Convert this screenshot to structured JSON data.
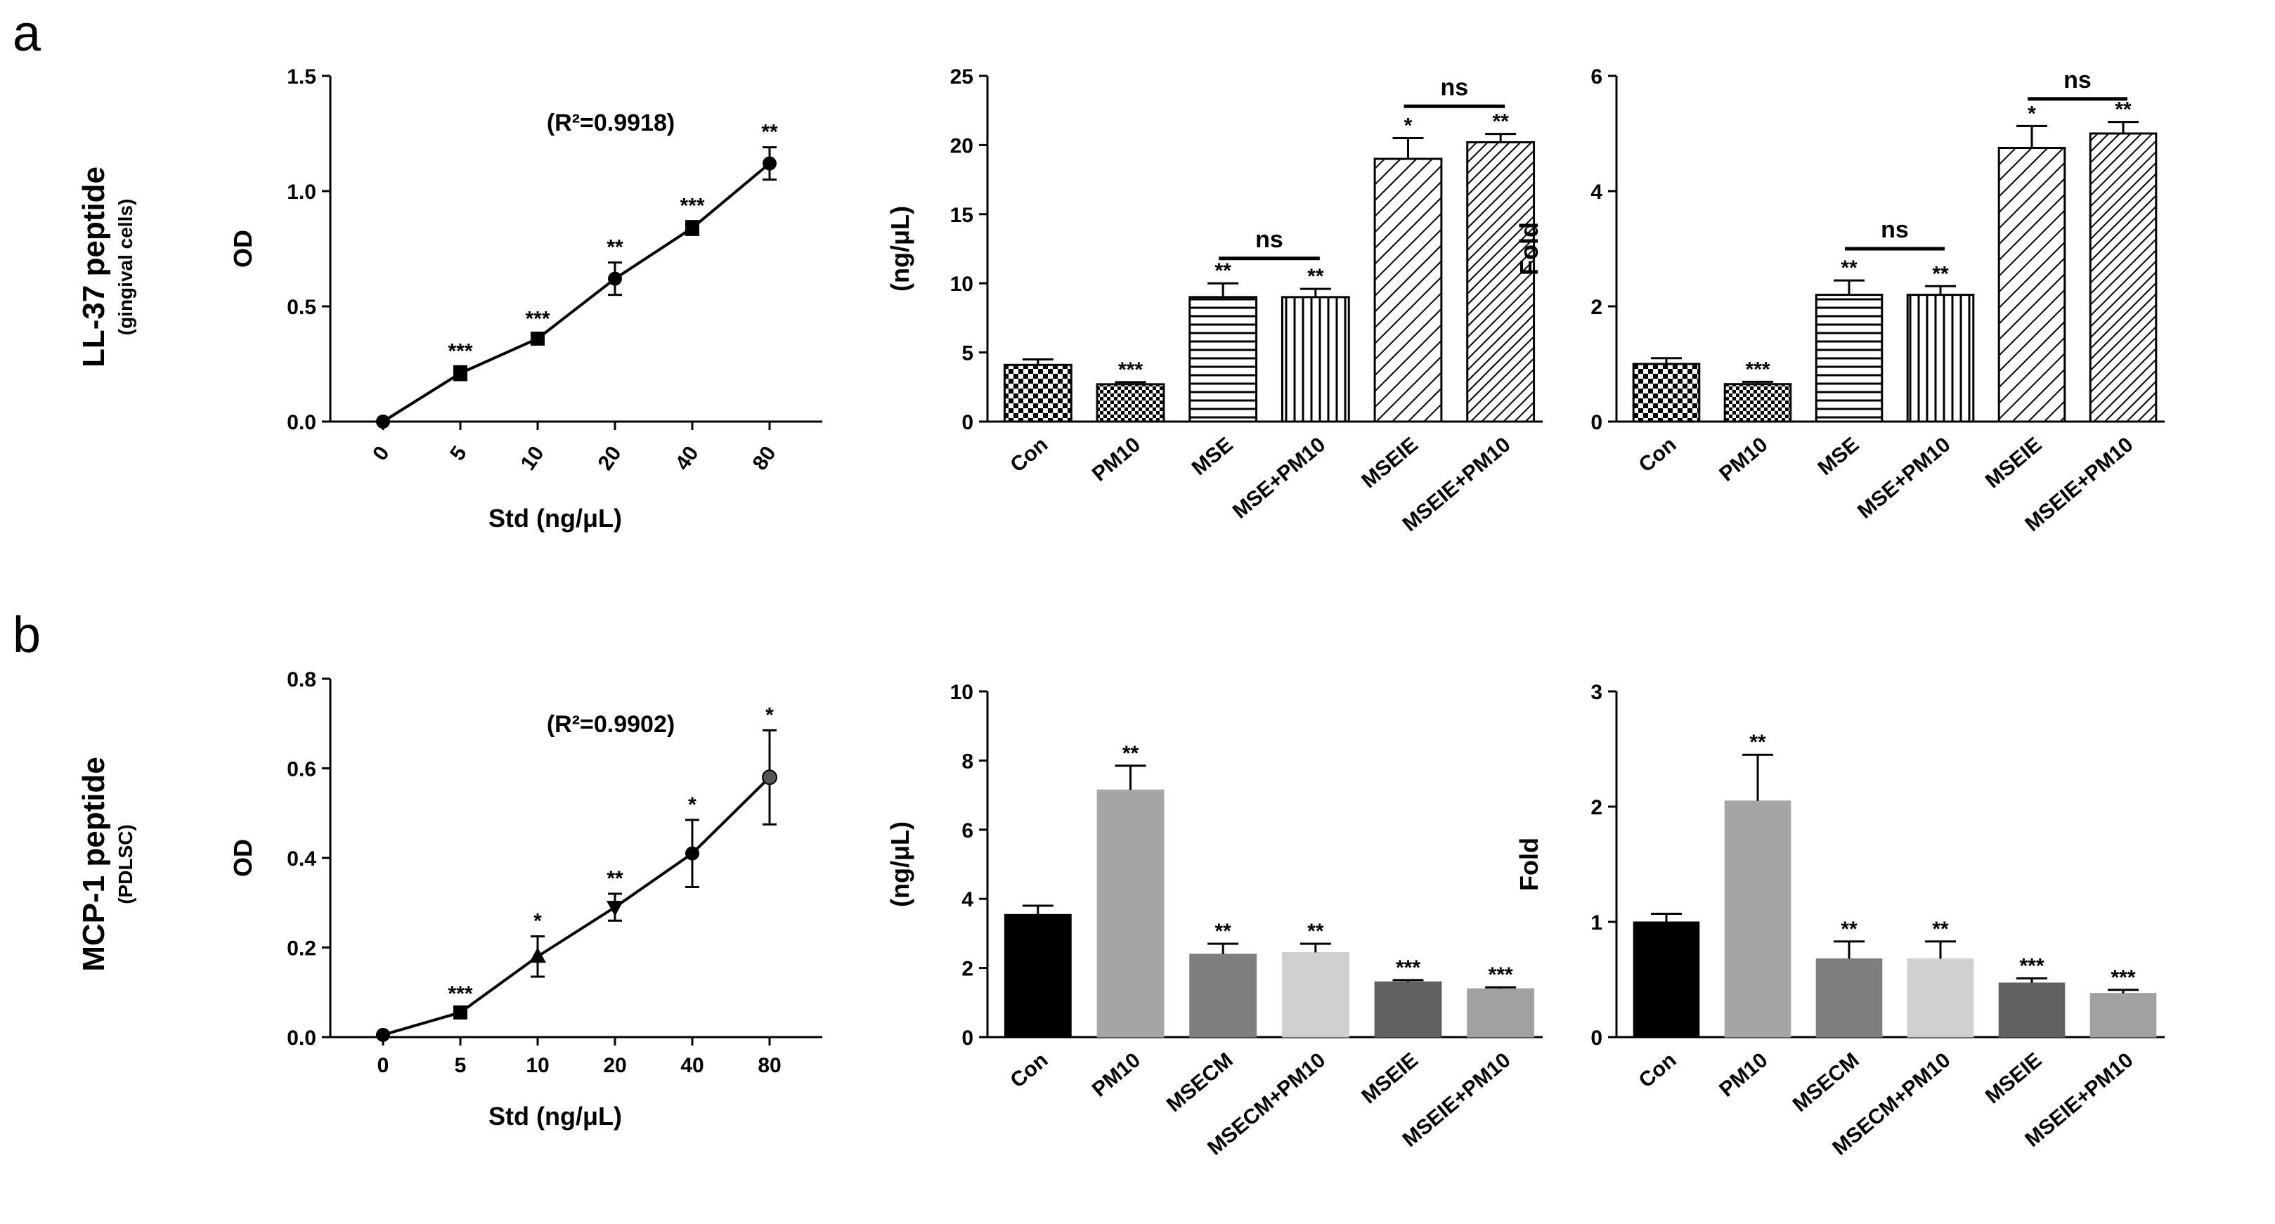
{
  "panels": {
    "a": "a",
    "b": "b"
  },
  "rows": {
    "a": {
      "title": "LL-37 peptide",
      "subtitle": "(gingival cells)"
    },
    "b": {
      "title": "MCP-1 peptide",
      "subtitle": "(PDLSC)"
    }
  },
  "chart_data": [
    {
      "id": "a1",
      "type": "line",
      "title": "",
      "xlabel": "Std (ng/μL)",
      "ylabel": "OD",
      "categories": [
        "0",
        "5",
        "10",
        "20",
        "40",
        "80"
      ],
      "values": [
        0.0,
        0.21,
        0.36,
        0.62,
        0.84,
        1.12
      ],
      "errors": [
        0.0,
        0.03,
        0.02,
        0.07,
        0.03,
        0.07
      ],
      "markers": [
        "circle",
        "square",
        "square",
        "circle",
        "square",
        "circle"
      ],
      "stars": [
        "",
        "***",
        "***",
        "**",
        "***",
        "**"
      ],
      "ylim": [
        0,
        1.5
      ],
      "yticks": [
        "0.0",
        "0.5",
        "1.0",
        "1.5"
      ],
      "yticks_values": [
        0,
        0.5,
        1.0,
        1.5
      ],
      "annotation": "(R²=0.9918)"
    },
    {
      "id": "a2",
      "type": "bar",
      "xlabel": "",
      "ylabel": "(ng/μL)",
      "categories": [
        "Con",
        "PM10",
        "MSE",
        "MSE+PM10",
        "MSEIE",
        "MSEIE+PM10"
      ],
      "values": [
        4.1,
        2.7,
        9.0,
        9.0,
        19.0,
        20.2
      ],
      "errors": [
        0.4,
        0.15,
        1.0,
        0.6,
        1.5,
        0.6
      ],
      "patterns": [
        "checker",
        "checker-fine",
        "hlines",
        "vlines",
        "diag",
        "diag-dense"
      ],
      "stars": [
        "",
        "***",
        "**",
        "**",
        "*",
        "**"
      ],
      "ylim": [
        0,
        25
      ],
      "yticks": [
        "0",
        "5",
        "10",
        "15",
        "20",
        "25"
      ],
      "yticks_values": [
        0,
        5,
        10,
        15,
        20,
        25
      ],
      "brackets": [
        {
          "from": 2,
          "to": 3,
          "label": "ns",
          "y": 11.8
        },
        {
          "from": 4,
          "to": 5,
          "label": "ns",
          "y": 22.8
        }
      ]
    },
    {
      "id": "a3",
      "type": "bar",
      "xlabel": "",
      "ylabel": "Fold",
      "categories": [
        "Con",
        "PM10",
        "MSE",
        "MSE+PM10",
        "MSEIE",
        "MSEIE+PM10"
      ],
      "values": [
        1.0,
        0.65,
        2.2,
        2.2,
        4.75,
        5.0
      ],
      "errors": [
        0.1,
        0.04,
        0.25,
        0.15,
        0.38,
        0.2
      ],
      "patterns": [
        "checker",
        "checker-fine",
        "hlines",
        "vlines",
        "diag",
        "diag-dense"
      ],
      "stars": [
        "",
        "***",
        "**",
        "**",
        "*",
        "**"
      ],
      "ylim": [
        0,
        6
      ],
      "yticks": [
        "0",
        "2",
        "4",
        "6"
      ],
      "yticks_values": [
        0,
        2,
        4,
        6
      ],
      "brackets": [
        {
          "from": 2,
          "to": 3,
          "label": "ns",
          "y": 3.0
        },
        {
          "from": 4,
          "to": 5,
          "label": "ns",
          "y": 5.6
        }
      ]
    },
    {
      "id": "b1",
      "type": "line",
      "title": "",
      "xlabel": "Std (ng/μL)",
      "ylabel": "OD",
      "categories": [
        "0",
        "5",
        "10",
        "20",
        "40",
        "80"
      ],
      "values": [
        0.005,
        0.055,
        0.18,
        0.29,
        0.41,
        0.58
      ],
      "errors": [
        0.0,
        0.008,
        0.045,
        0.03,
        0.075,
        0.105
      ],
      "markers": [
        "circle",
        "square",
        "triangle",
        "triangle-down",
        "circle",
        "circle-gray"
      ],
      "stars": [
        "",
        "***",
        "*",
        "**",
        "*",
        "*"
      ],
      "ylim": [
        0,
        0.8
      ],
      "yticks": [
        "0.0",
        "0.2",
        "0.4",
        "0.6",
        "0.8"
      ],
      "yticks_values": [
        0,
        0.2,
        0.4,
        0.6,
        0.8
      ],
      "annotation": "(R²=0.9902)"
    },
    {
      "id": "b2",
      "type": "bar",
      "xlabel": "",
      "ylabel": "(ng/μL)",
      "categories": [
        "Con",
        "PM10",
        "MSECM",
        "MSECM+PM10",
        "MSEIE",
        "MSEIE+PM10"
      ],
      "values": [
        3.55,
        7.15,
        2.4,
        2.45,
        1.6,
        1.4
      ],
      "errors": [
        0.25,
        0.7,
        0.3,
        0.25,
        0.05,
        0.04
      ],
      "colors": [
        "#000000",
        "#a6a6a6",
        "#7f7f7f",
        "#d0d0d0",
        "#606060",
        "#a0a0a0"
      ],
      "stars": [
        "",
        "**",
        "**",
        "**",
        "***",
        "***"
      ],
      "ylim": [
        0,
        10
      ],
      "yticks": [
        "0",
        "2",
        "4",
        "6",
        "8",
        "10"
      ],
      "yticks_values": [
        0,
        2,
        4,
        6,
        8,
        10
      ]
    },
    {
      "id": "b3",
      "type": "bar",
      "xlabel": "",
      "ylabel": "Fold",
      "categories": [
        "Con",
        "PM10",
        "MSECM",
        "MSECM+PM10",
        "MSEIE",
        "MSEIE+PM10"
      ],
      "values": [
        1.0,
        2.05,
        0.68,
        0.68,
        0.47,
        0.38
      ],
      "errors": [
        0.07,
        0.4,
        0.15,
        0.15,
        0.04,
        0.03
      ],
      "colors": [
        "#000000",
        "#a6a6a6",
        "#7f7f7f",
        "#d0d0d0",
        "#606060",
        "#a0a0a0"
      ],
      "stars": [
        "",
        "**",
        "**",
        "**",
        "***",
        "***"
      ],
      "ylim": [
        0,
        3
      ],
      "yticks": [
        "0",
        "1",
        "2",
        "3"
      ],
      "yticks_values": [
        0,
        1,
        2,
        3
      ]
    }
  ]
}
